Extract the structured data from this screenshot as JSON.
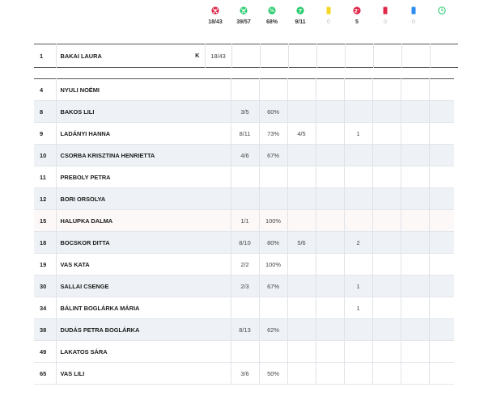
{
  "header": {
    "stats": [
      {
        "icon": "ball-icon",
        "value": "18/43",
        "color": "#e0284a"
      },
      {
        "icon": "ball-outline-icon",
        "value": "39/57",
        "color": "#2ecc71"
      },
      {
        "icon": "percent-icon",
        "value": "68%",
        "color": "#2ecc71"
      },
      {
        "icon": "seven-meter-icon",
        "value": "9/11",
        "color": "#2ecc71"
      },
      {
        "icon": "yellow-card-icon",
        "value": "0",
        "color": "#f5d623"
      },
      {
        "icon": "two-minute-icon",
        "value": "5",
        "color": "#e0284a"
      },
      {
        "icon": "red-card-icon",
        "value": "0",
        "color": "#e0284a"
      },
      {
        "icon": "blue-card-icon",
        "value": "0",
        "color": "#2f8cf0"
      },
      {
        "icon": "clock-icon",
        "value": "",
        "color": "#2ecc71"
      }
    ]
  },
  "goalkeeper": {
    "number": "1",
    "name": "BAKAI LAURA",
    "captain": "K",
    "stat": "18/43"
  },
  "players": [
    {
      "number": "4",
      "name": "NYULI NOÉMI",
      "shots": "",
      "pct": "",
      "seven": "",
      "two": ""
    },
    {
      "number": "8",
      "name": "BAKOS LILI",
      "shots": "3/5",
      "pct": "60%",
      "seven": "",
      "two": ""
    },
    {
      "number": "9",
      "name": "LADÁNYI HANNA",
      "shots": "8/11",
      "pct": "73%",
      "seven": "4/5",
      "two": "1"
    },
    {
      "number": "10",
      "name": "CSORBA KRISZTINA HENRIETTA",
      "shots": "4/6",
      "pct": "67%",
      "seven": "",
      "two": ""
    },
    {
      "number": "11",
      "name": "PREBOLY PETRA",
      "shots": "",
      "pct": "",
      "seven": "",
      "two": ""
    },
    {
      "number": "12",
      "name": "BORI ORSOLYA",
      "shots": "",
      "pct": "",
      "seven": "",
      "two": ""
    },
    {
      "number": "15",
      "name": "HALUPKA DALMA",
      "shots": "1/1",
      "pct": "100%",
      "seven": "",
      "two": ""
    },
    {
      "number": "18",
      "name": "BOCSKOR DITTA",
      "shots": "8/10",
      "pct": "80%",
      "seven": "5/6",
      "two": "2"
    },
    {
      "number": "19",
      "name": "VAS KATA",
      "shots": "2/2",
      "pct": "100%",
      "seven": "",
      "two": ""
    },
    {
      "number": "30",
      "name": "SALLAI CSENGE",
      "shots": "2/3",
      "pct": "67%",
      "seven": "",
      "two": "1"
    },
    {
      "number": "34",
      "name": "BÁLINT BOGLÁRKA MÁRIA",
      "shots": "",
      "pct": "",
      "seven": "",
      "two": "1"
    },
    {
      "number": "38",
      "name": "DUDÁS PETRA BOGLÁRKA",
      "shots": "8/13",
      "pct": "62%",
      "seven": "",
      "two": ""
    },
    {
      "number": "49",
      "name": "LAKATOS SÁRA",
      "shots": "",
      "pct": "",
      "seven": "",
      "two": ""
    },
    {
      "number": "65",
      "name": "VAS LILI",
      "shots": "3/6",
      "pct": "50%",
      "seven": "",
      "two": ""
    }
  ]
}
